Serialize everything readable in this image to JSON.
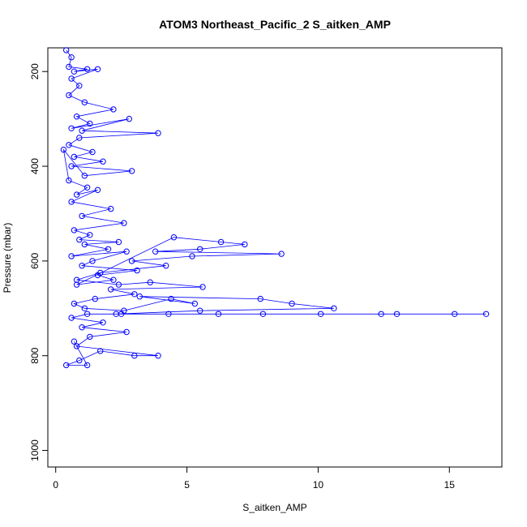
{
  "chart_data": {
    "type": "line",
    "title": "ATOM3 Northeast_Pacific_2 S_aitken_AMP",
    "xlabel": "S_aitken_AMP",
    "ylabel": "Pressure (mbar)",
    "xlim": [
      -0.3,
      17.0
    ],
    "ylim": [
      1035,
      150
    ],
    "y_reversed": true,
    "x_ticks": [
      0,
      5,
      10,
      15
    ],
    "y_ticks": [
      200,
      400,
      600,
      800,
      1000
    ],
    "colors": {
      "series": "#0000ff",
      "axis": "#000000"
    },
    "marker": "open-circle",
    "grid": false,
    "series": [
      {
        "values_x": [
          0.4,
          0.6,
          0.5,
          1.2,
          0.7,
          1.6,
          0.6,
          0.9,
          0.5,
          1.1,
          2.2,
          0.8,
          1.3,
          0.6,
          2.8,
          1.0,
          3.9,
          0.9,
          0.5,
          1.4,
          0.7,
          1.8,
          0.6,
          2.9,
          1.1,
          0.3,
          0.5,
          1.2,
          0.8,
          1.6,
          0.6,
          2.1,
          1.0,
          2.6,
          0.7,
          1.3,
          0.9,
          2.4,
          1.1,
          2.0,
          0.6,
          2.7,
          1.4,
          1.0,
          3.1,
          1.6,
          2.2,
          0.8,
          4.5,
          6.3,
          7.2,
          5.5,
          3.8,
          8.6,
          5.2,
          2.9,
          4.2,
          1.7,
          0.8,
          2.4,
          3.6,
          5.6,
          2.1,
          3.0,
          1.5,
          0.7,
          1.1,
          2.6,
          4.4,
          5.3,
          3.2,
          7.8,
          9.0,
          10.6,
          5.5,
          2.3,
          16.4,
          15.2,
          13.0,
          12.4,
          10.1,
          7.9,
          6.2,
          4.3,
          2.5,
          1.2,
          0.6,
          1.8,
          1.0,
          2.7,
          1.3,
          0.8,
          3.9,
          3.0,
          1.7,
          0.9,
          0.4,
          1.2,
          0.7
        ],
        "values_y": [
          155,
          170,
          190,
          195,
          200,
          195,
          215,
          230,
          250,
          265,
          280,
          295,
          310,
          320,
          300,
          325,
          330,
          340,
          355,
          370,
          380,
          390,
          400,
          410,
          420,
          365,
          430,
          445,
          460,
          450,
          475,
          490,
          505,
          520,
          535,
          545,
          555,
          560,
          565,
          575,
          590,
          580,
          600,
          610,
          620,
          630,
          640,
          650,
          550,
          560,
          565,
          575,
          580,
          585,
          590,
          600,
          610,
          625,
          640,
          650,
          645,
          655,
          660,
          670,
          680,
          690,
          700,
          705,
          680,
          690,
          675,
          680,
          690,
          700,
          705,
          712,
          712,
          712,
          712,
          712,
          712,
          712,
          712,
          712,
          712,
          712,
          720,
          730,
          740,
          750,
          760,
          780,
          800,
          800,
          790,
          810,
          820,
          820,
          770
        ]
      }
    ]
  }
}
